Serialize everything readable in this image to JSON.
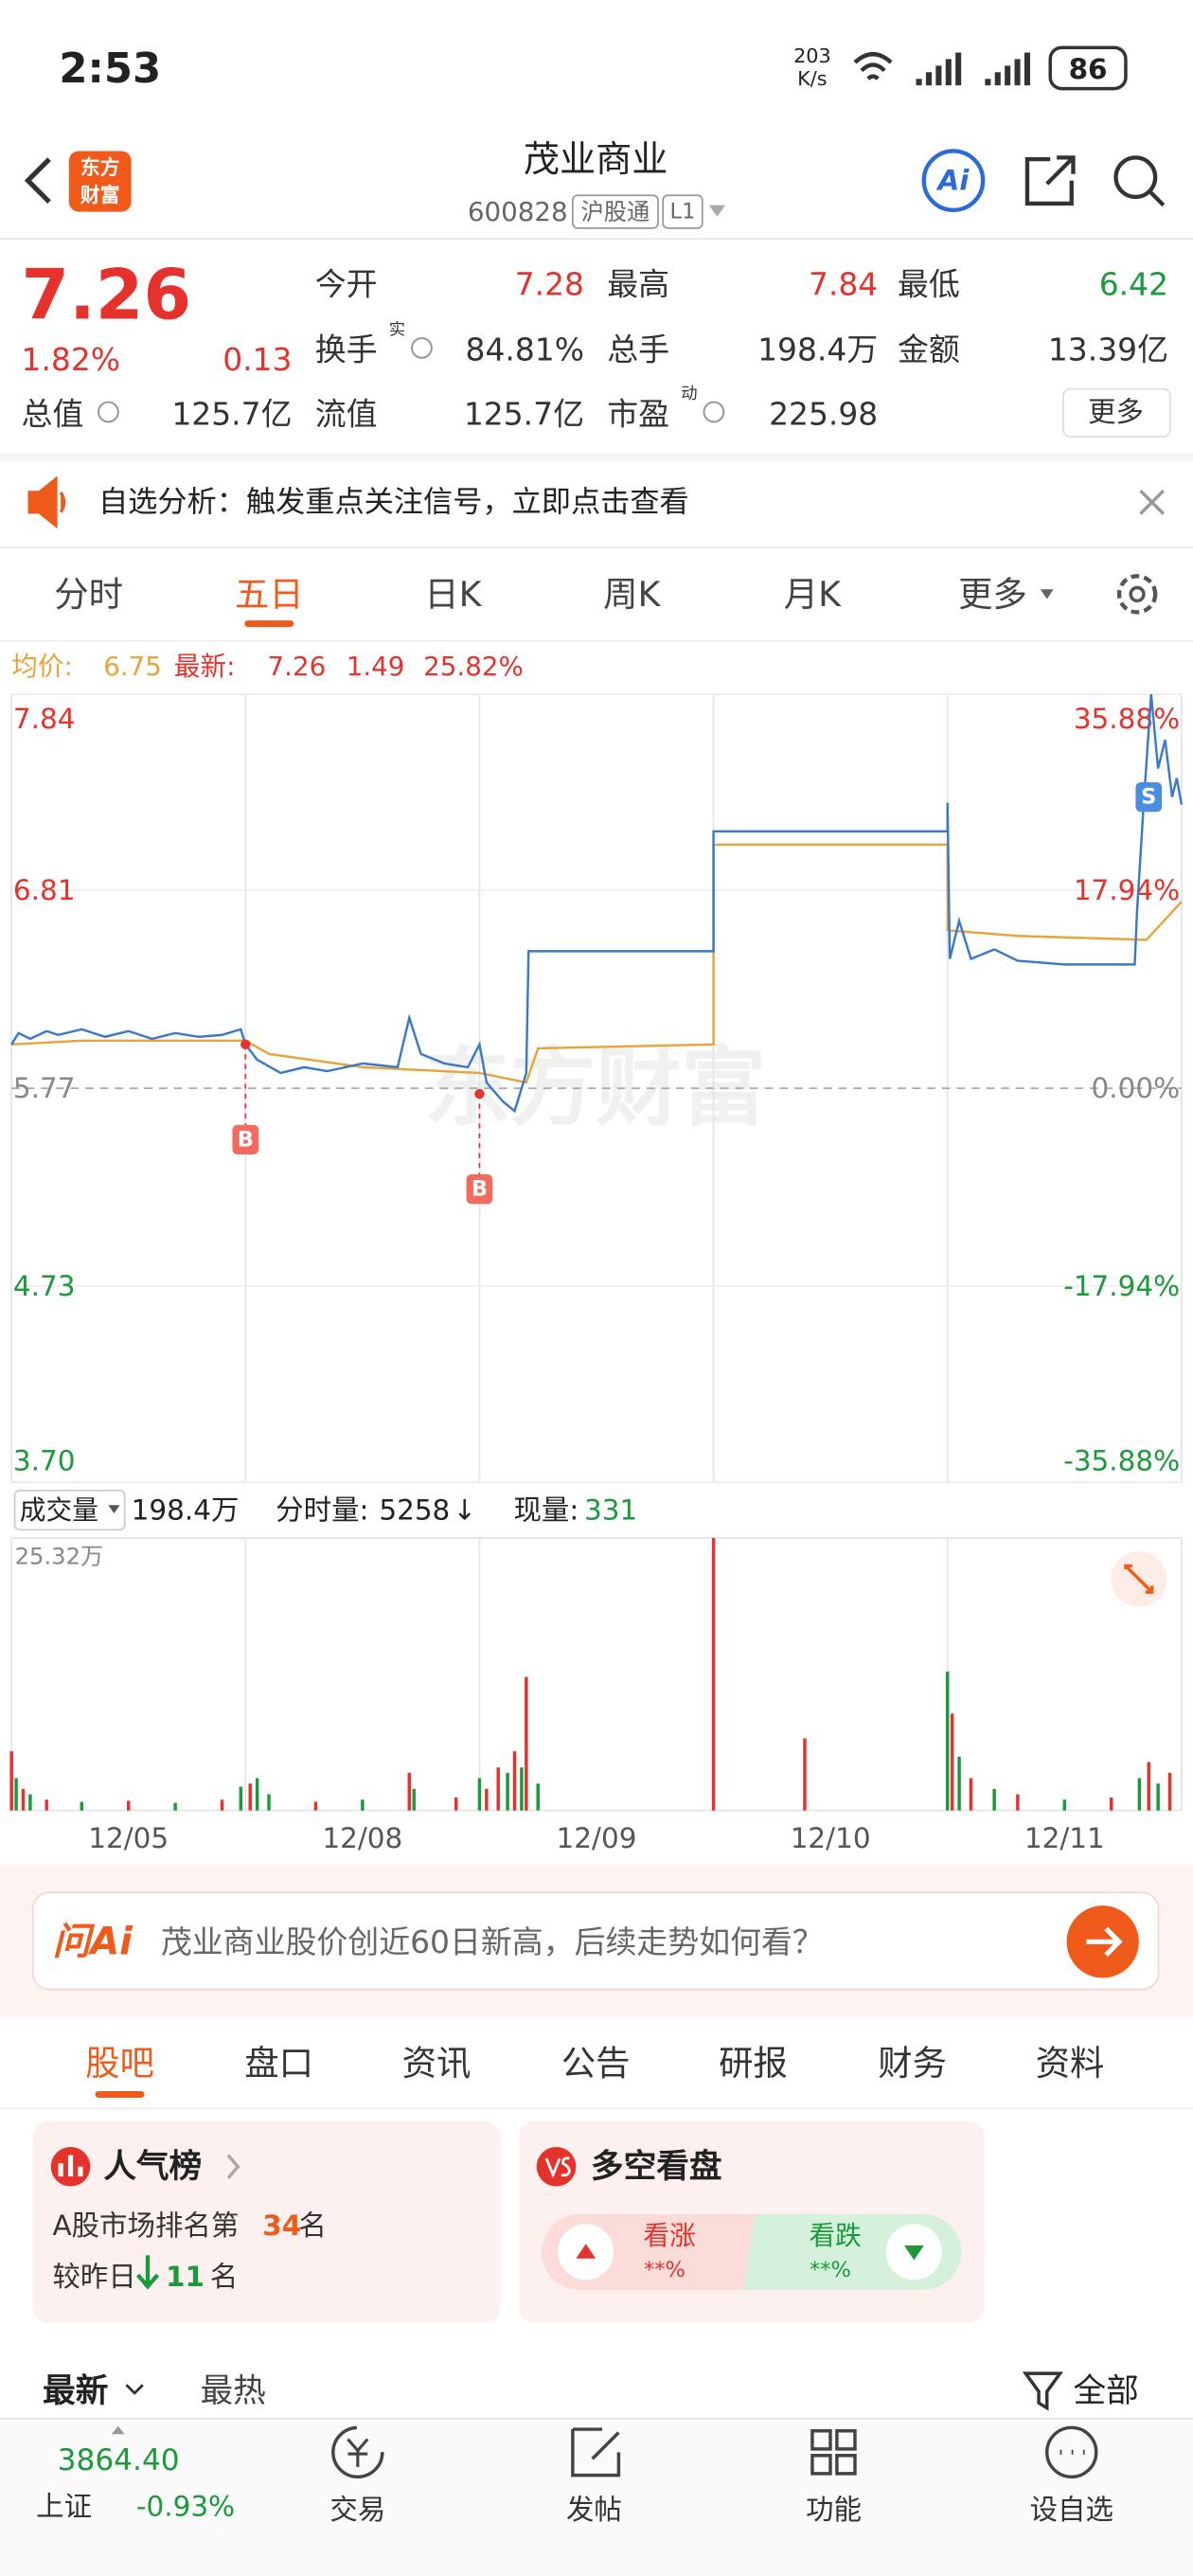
{
  "status_bar": {
    "time": "2:53",
    "speed": "203",
    "speed_unit": "K/s",
    "battery": "86"
  },
  "header": {
    "logo": [
      "东方",
      "财富"
    ],
    "title": "茂业商业",
    "code": "600828",
    "market": "沪股通",
    "level": "L1",
    "ai": "Ai"
  },
  "quote": {
    "price": "7.26",
    "change_pct": "1.82%",
    "change": "0.13",
    "fields": [
      {
        "label": "今开",
        "value": "7.28",
        "color": "#e5322d"
      },
      {
        "label": "最高",
        "value": "7.84",
        "color": "#e5322d"
      },
      {
        "label": "最低",
        "value": "6.42",
        "color": "#1a9a3a"
      },
      {
        "label": "换手",
        "sup": "实",
        "value": "84.81%"
      },
      {
        "label": "总手",
        "value": "198.4万"
      },
      {
        "label": "金额",
        "value": "13.39亿"
      },
      {
        "label": "总值",
        "value": "125.7亿"
      },
      {
        "label": "流值",
        "value": "125.7亿"
      },
      {
        "label": "市盈",
        "sup": "动",
        "value": "225.98"
      }
    ],
    "more": "更多"
  },
  "banner": {
    "text": "自选分析：触发重点关注信号，立即点击查看"
  },
  "chart_tabs": {
    "items": [
      "分时",
      "五日",
      "日K",
      "周K",
      "月K",
      "更多"
    ],
    "active": 1
  },
  "info_line": {
    "avg_label": "均价:",
    "avg": "6.75",
    "latest_label": "最新:",
    "latest": "7.26",
    "change": "1.49",
    "change_pct": "25.82%"
  },
  "chart": {
    "watermark": "东方财富",
    "ylim": [
      3.7,
      7.84
    ],
    "left_ticks": [
      7.84,
      6.81,
      5.77,
      4.73,
      {
        "value": 3.7,
        "label": "3.70"
      }
    ],
    "right_ticks": [
      {
        "value": 7.84,
        "label": "35.88%"
      },
      {
        "value": 6.81,
        "label": "17.94%"
      },
      {
        "value": 5.77,
        "label": "0.00%"
      },
      {
        "value": 4.73,
        "label": "-17.94%"
      },
      {
        "value": 3.7,
        "label": "-35.88%"
      }
    ],
    "xlim": [
      0,
      5
    ],
    "dates": [
      "12/05",
      "12/08",
      "12/09",
      "12/10",
      "12/11"
    ],
    "price_color": "#3a78c9",
    "avg_color": "#e8a33a",
    "price": {
      "x": [
        0,
        0.03,
        0.08,
        0.15,
        0.2,
        0.3,
        0.4,
        0.5,
        0.6,
        0.7,
        0.8,
        0.9,
        0.98,
        1.0,
        1.05,
        1.15,
        1.25,
        1.35,
        1.5,
        1.65,
        1.7,
        1.75,
        1.85,
        1.95,
        2.0,
        2.03,
        2.1,
        2.15,
        2.2,
        2.21,
        3.0,
        3.0,
        4.0,
        4.0,
        4.01,
        4.05,
        4.1,
        4.2,
        4.3,
        4.5,
        4.7,
        4.8,
        4.81,
        4.84,
        4.87,
        4.9,
        4.93,
        4.96,
        4.98,
        5.0
      ],
      "values": [
        6.0,
        6.06,
        6.03,
        6.07,
        6.05,
        6.08,
        6.04,
        6.07,
        6.03,
        6.06,
        6.04,
        6.05,
        6.08,
        6.0,
        5.92,
        5.85,
        5.88,
        5.86,
        5.9,
        5.88,
        6.14,
        5.95,
        5.9,
        5.88,
        6.0,
        5.8,
        5.7,
        5.65,
        5.85,
        6.49,
        6.49,
        7.12,
        7.12,
        7.27,
        6.45,
        6.65,
        6.45,
        6.5,
        6.44,
        6.42,
        6.42,
        6.42,
        6.7,
        7.3,
        7.84,
        7.45,
        7.6,
        7.3,
        7.4,
        7.26
      ]
    },
    "avg": {
      "x": [
        0,
        0.3,
        1.0,
        1.1,
        1.5,
        2.0,
        2.2,
        2.25,
        3.0,
        3.0,
        4.0,
        4.0,
        4.3,
        4.85,
        5.0
      ],
      "values": [
        6.0,
        6.02,
        6.02,
        5.95,
        5.88,
        5.85,
        5.8,
        5.98,
        6.0,
        7.05,
        7.05,
        6.6,
        6.57,
        6.55,
        6.75
      ]
    },
    "signals": [
      {
        "label": "B",
        "x": 1.0,
        "value": 6.0
      },
      {
        "label": "B",
        "x": 2.0,
        "value": 5.74
      },
      {
        "label": "S",
        "x": 4.86,
        "value": 7.3
      }
    ]
  },
  "volume_header": {
    "label": "成交量",
    "total": "198.4万",
    "minute_label": "分时量:",
    "minute": "5258",
    "minute_arrow": "↓",
    "now_label": "现量:",
    "now": "331"
  },
  "volume": {
    "ylim": [
      0,
      25.32
    ],
    "ticks": [
      {
        "value": 25.32,
        "label": "25.32万"
      }
    ],
    "up_color": "#e5322d",
    "down_color": "#1a9a3a",
    "x": [
      0.0,
      0.02,
      0.05,
      0.08,
      0.15,
      0.3,
      0.5,
      0.7,
      0.9,
      0.98,
      1.02,
      1.05,
      1.1,
      1.3,
      1.5,
      1.7,
      1.72,
      1.9,
      2.0,
      2.03,
      2.08,
      2.12,
      2.15,
      2.18,
      2.2,
      2.25,
      3.0,
      3.39,
      4.0,
      4.02,
      4.05,
      4.1,
      4.2,
      4.3,
      4.5,
      4.7,
      4.82,
      4.86,
      4.9,
      4.95
    ],
    "values": [
      5.5,
      3.0,
      2.0,
      1.5,
      1.0,
      0.8,
      0.9,
      0.7,
      1.0,
      2.2,
      2.5,
      3.0,
      1.5,
      0.8,
      1.0,
      3.5,
      2.0,
      1.2,
      3.0,
      2.0,
      4.0,
      3.5,
      5.5,
      4.0,
      12.4,
      2.5,
      25.32,
      6.7,
      12.9,
      9.0,
      5.0,
      3.0,
      2.0,
      1.5,
      1.0,
      1.2,
      3.0,
      4.5,
      2.5,
      3.5
    ],
    "up": [
      true,
      false,
      true,
      false,
      true,
      false,
      true,
      false,
      true,
      false,
      true,
      false,
      false,
      true,
      false,
      true,
      false,
      true,
      false,
      true,
      true,
      false,
      true,
      false,
      true,
      false,
      true,
      true,
      false,
      true,
      false,
      true,
      false,
      true,
      false,
      true,
      false,
      true,
      false,
      true
    ]
  },
  "ai_bar": {
    "logo": "问Ai",
    "text": "茂业商业股价创近60日新高，后续走势如何看？"
  },
  "section_tabs": {
    "items": [
      "股吧",
      "盘口",
      "资讯",
      "公告",
      "研报",
      "财务",
      "资料"
    ],
    "active": 0
  },
  "popularity": {
    "title": "人气榜",
    "rank_prefix": "A股市场排名第",
    "rank": "34",
    "rank_suffix": "名",
    "compare_prefix": "较昨日",
    "compare": "11",
    "compare_suffix": "名"
  },
  "bull_bear": {
    "title": "多空看盘",
    "up": "看涨",
    "up_pct": "**%",
    "down": "看跌",
    "down_pct": "**%"
  },
  "feed_sort": {
    "items": [
      "最新",
      "最热"
    ],
    "filter": "全部"
  },
  "bottom_nav": {
    "index_value": "3864.40",
    "index_name": "上证",
    "index_change": "-0.93%",
    "items": [
      "交易",
      "发帖",
      "功能",
      "设自选"
    ]
  }
}
